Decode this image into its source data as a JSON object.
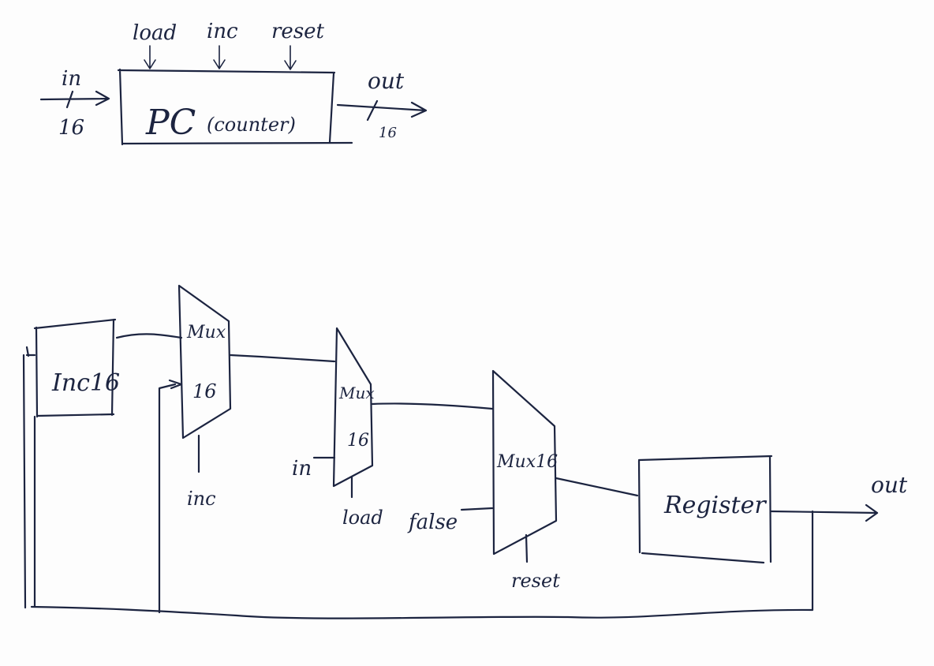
{
  "top": {
    "pc_label": "PC",
    "pc_sublabel": "(counter)",
    "input_label": "in",
    "input_width": "16",
    "output_label": "out",
    "output_width": "16",
    "control_load": "load",
    "control_inc": "inc",
    "control_reset": "reset"
  },
  "circuit": {
    "inc16_label": "Inc16",
    "mux1_label_line1": "Mux",
    "mux1_label_line2": "16",
    "mux1_select": "inc",
    "mux2_label_line1": "Mux",
    "mux2_label_line2": "16",
    "mux2_input": "in",
    "mux2_select": "load",
    "mux3_label": "Mux16",
    "mux3_input": "false",
    "mux3_select": "reset",
    "register_label": "Register",
    "output_label": "out"
  }
}
